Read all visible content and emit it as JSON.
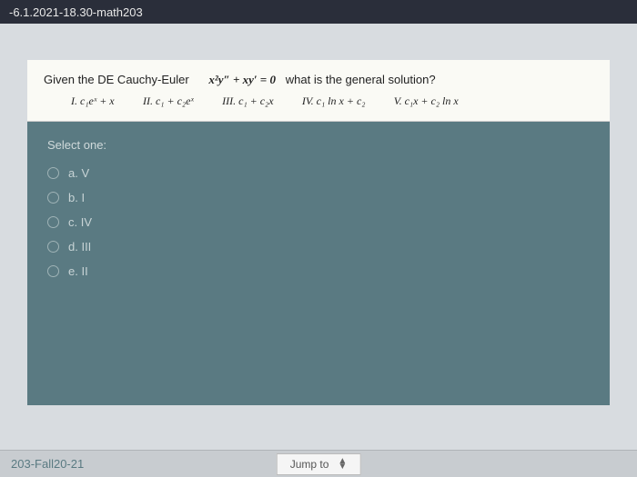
{
  "topbar": {
    "title": "-6.1.2021-18.30-math203"
  },
  "question": {
    "prompt_prefix": "Given the DE Cauchy-Euler",
    "equation": "x²y″ + xy′ = 0",
    "prompt_suffix": "what is the general solution?",
    "choices_line": {
      "i": "I. c₁eˣ + x",
      "ii": "II. c₁ + c₂eˣ",
      "iii": "III. c₁ + c₂x",
      "iv": "IV. c₁ ln x + c₂",
      "v": "V. c₁x + c₂ ln x"
    }
  },
  "answers": {
    "select_label": "Select one:",
    "options": {
      "a": "a. V",
      "b": "b. I",
      "c": "c. IV",
      "d": "d. III",
      "e": "e. II"
    }
  },
  "bottombar": {
    "left": "203-Fall20-21",
    "jump": "Jump to"
  },
  "colors": {
    "panel_bg": "#5a7a82",
    "header_bg": "#fafaf5",
    "page_bg": "#d8dce0",
    "topbar_bg": "#2a2e3a"
  }
}
